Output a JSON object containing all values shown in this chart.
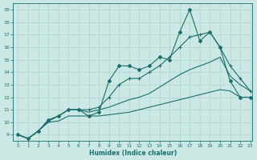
{
  "xlabel": "Humidex (Indice chaleur)",
  "bg_color": "#cce8e4",
  "grid_color": "#aad4cc",
  "line_color": "#1a6e6e",
  "xlim": [
    -0.5,
    23.2
  ],
  "ylim": [
    8.5,
    19.5
  ],
  "xticks": [
    0,
    1,
    2,
    3,
    4,
    5,
    6,
    7,
    8,
    9,
    10,
    11,
    12,
    13,
    14,
    15,
    16,
    17,
    18,
    19,
    20,
    21,
    22,
    23
  ],
  "yticks": [
    9,
    10,
    11,
    12,
    13,
    14,
    15,
    16,
    17,
    18,
    19
  ],
  "line1": {
    "x": [
      0,
      1,
      2,
      3,
      4,
      5,
      6,
      7,
      8,
      9,
      10,
      11,
      12,
      13,
      14,
      15,
      16,
      17,
      18,
      19,
      20,
      21,
      22,
      23
    ],
    "y": [
      9.0,
      8.7,
      9.3,
      10.0,
      10.1,
      10.5,
      10.5,
      10.5,
      10.5,
      10.6,
      10.7,
      10.8,
      11.0,
      11.2,
      11.4,
      11.6,
      11.8,
      12.0,
      12.2,
      12.4,
      12.6,
      12.5,
      12.0,
      12.0
    ]
  },
  "line2": {
    "x": [
      0,
      1,
      2,
      3,
      4,
      5,
      6,
      7,
      8,
      9,
      10,
      11,
      12,
      13,
      14,
      15,
      16,
      17,
      18,
      19,
      20,
      21,
      22,
      23
    ],
    "y": [
      9.0,
      8.7,
      9.3,
      10.1,
      10.5,
      11.0,
      11.0,
      10.8,
      11.0,
      11.2,
      11.5,
      11.8,
      12.0,
      12.3,
      12.8,
      13.3,
      13.8,
      14.2,
      14.5,
      14.8,
      15.2,
      13.7,
      13.0,
      12.5
    ]
  },
  "line3_nomarker": {
    "x": [
      0,
      1,
      2,
      3,
      4,
      5,
      6,
      7,
      8,
      9,
      10,
      11,
      12,
      13,
      14,
      15,
      16,
      17,
      18,
      19,
      20,
      21,
      22,
      23
    ],
    "y": [
      9.0,
      8.7,
      9.3,
      10.1,
      10.5,
      11.0,
      11.0,
      11.0,
      11.2,
      12.0,
      13.0,
      13.5,
      13.5,
      14.0,
      14.5,
      15.2,
      16.0,
      16.8,
      17.0,
      17.2,
      16.0,
      14.5,
      13.5,
      12.5
    ]
  },
  "line4_marker": {
    "x": [
      0,
      1,
      2,
      3,
      4,
      5,
      6,
      7,
      8,
      9,
      10,
      11,
      12,
      13,
      14,
      15,
      16,
      17,
      18,
      19,
      20,
      21,
      22,
      23
    ],
    "y": [
      9.0,
      8.7,
      9.3,
      10.2,
      10.5,
      11.0,
      11.0,
      10.5,
      10.8,
      13.3,
      14.5,
      14.5,
      14.2,
      14.5,
      15.2,
      15.0,
      17.2,
      19.0,
      16.5,
      17.2,
      16.0,
      13.3,
      12.0,
      12.0
    ]
  }
}
